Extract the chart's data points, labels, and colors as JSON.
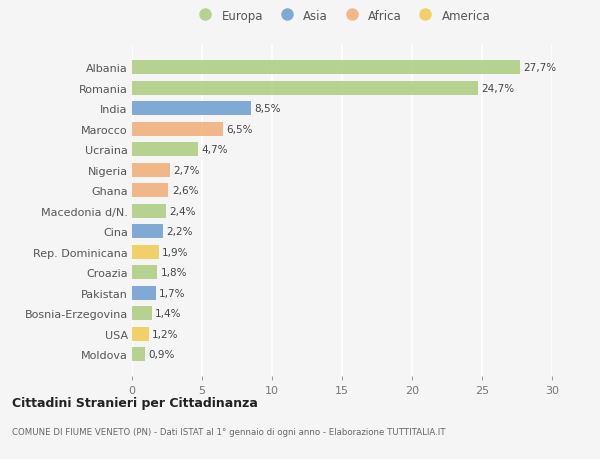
{
  "countries": [
    "Albania",
    "Romania",
    "India",
    "Marocco",
    "Ucraina",
    "Nigeria",
    "Ghana",
    "Macedonia d/N.",
    "Cina",
    "Rep. Dominicana",
    "Croazia",
    "Pakistan",
    "Bosnia-Erzegovina",
    "USA",
    "Moldova"
  ],
  "values": [
    27.7,
    24.7,
    8.5,
    6.5,
    4.7,
    2.7,
    2.6,
    2.4,
    2.2,
    1.9,
    1.8,
    1.7,
    1.4,
    1.2,
    0.9
  ],
  "labels": [
    "27,7%",
    "24,7%",
    "8,5%",
    "6,5%",
    "4,7%",
    "2,7%",
    "2,6%",
    "2,4%",
    "2,2%",
    "1,9%",
    "1,8%",
    "1,7%",
    "1,4%",
    "1,2%",
    "0,9%"
  ],
  "continents": [
    "Europa",
    "Europa",
    "Asia",
    "Africa",
    "Europa",
    "Africa",
    "Africa",
    "Europa",
    "Asia",
    "America",
    "Europa",
    "Asia",
    "Europa",
    "America",
    "Europa"
  ],
  "continent_colors": {
    "Europa": "#a8c97a",
    "Asia": "#6699cc",
    "Africa": "#f0aa70",
    "America": "#f0c84a"
  },
  "legend_order": [
    "Europa",
    "Asia",
    "Africa",
    "America"
  ],
  "xlim": [
    0,
    30
  ],
  "xticks": [
    0,
    5,
    10,
    15,
    20,
    25,
    30
  ],
  "title": "Cittadini Stranieri per Cittadinanza",
  "subtitle": "COMUNE DI FIUME VENETO (PN) - Dati ISTAT al 1° gennaio di ogni anno - Elaborazione TUTTITALIA.IT",
  "bg_color": "#f5f5f5",
  "grid_color": "#ffffff",
  "bar_height": 0.68,
  "bar_alpha": 0.82
}
